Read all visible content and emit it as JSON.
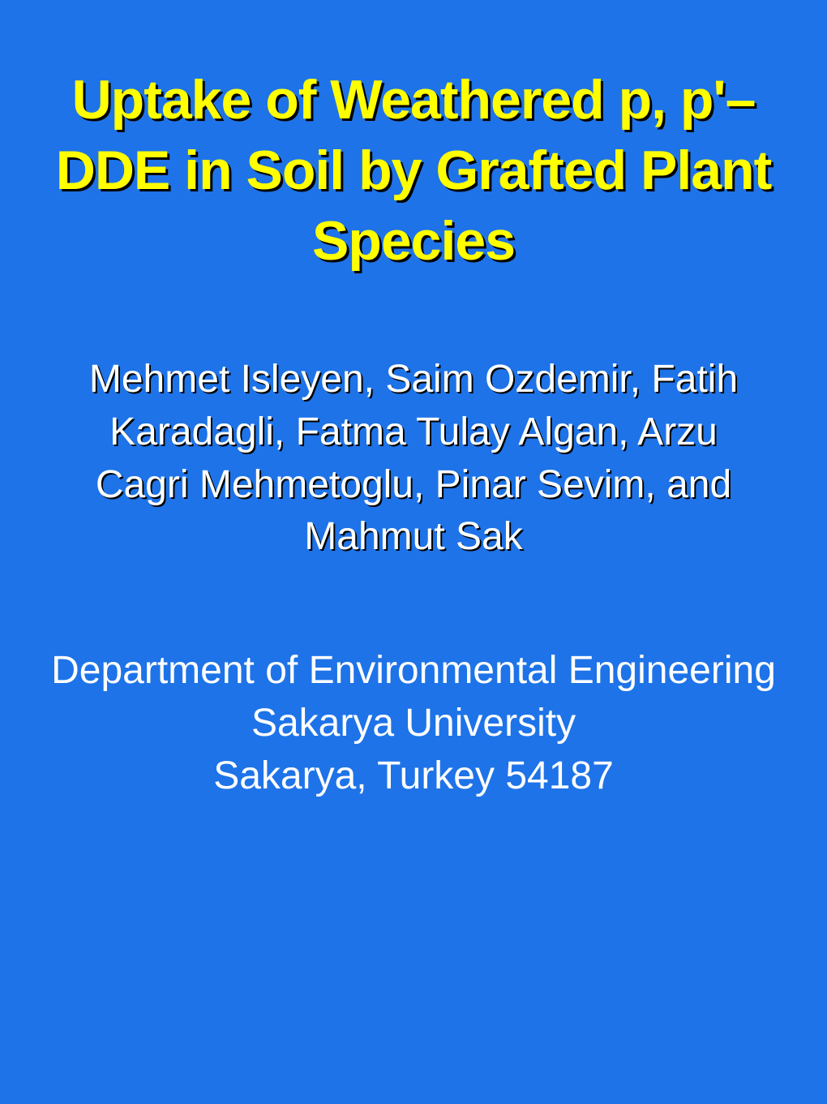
{
  "slide": {
    "title": "Uptake of Weathered p, p'–DDE in Soil by Grafted Plant Species",
    "authors": "Mehmet Isleyen, Saim Ozdemir, Fatih Karadagli, Fatma Tulay Algan, Arzu Cagri Mehmetoglu, Pinar Sevim, and Mahmut Sak",
    "department": "Department of Environmental Engineering",
    "university": "Sakarya University",
    "location": "Sakarya, Turkey 54187",
    "colors": {
      "background": "#1e73e8",
      "title_color": "#ffff00",
      "title_shadow": "#000000",
      "body_text": "#ffffff",
      "authors_shadow": "#000000"
    },
    "typography": {
      "title_fontsize": 68,
      "title_fontweight": "bold",
      "authors_fontsize": 48,
      "affiliation_fontsize": 48,
      "font_family": "Arial"
    }
  }
}
